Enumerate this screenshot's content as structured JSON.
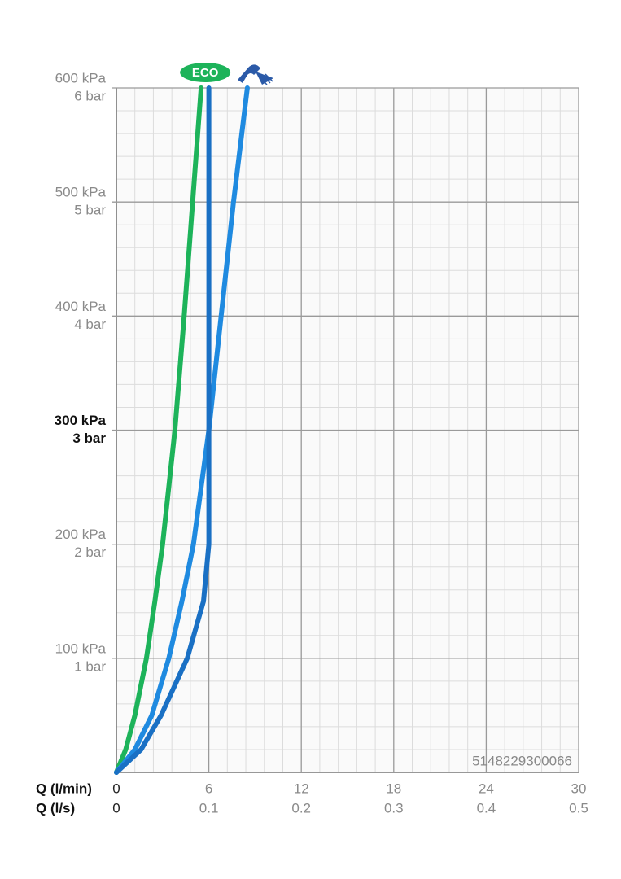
{
  "chart_data": {
    "type": "line",
    "xlabel": "Q (l/min)",
    "x2label": "Q (l/s)",
    "xlim": [
      0,
      30
    ],
    "xticks": [
      0,
      6,
      12,
      18,
      24,
      30
    ],
    "x2lim": [
      0,
      0.5
    ],
    "x2ticks": [
      0,
      0.1,
      0.2,
      0.3,
      0.4,
      0.5
    ],
    "ylim": [
      0,
      600
    ],
    "yticks": [
      {
        "value": 100,
        "label": "100 kPa"
      },
      {
        "value": 200,
        "label": "200 kPa"
      },
      {
        "value": 300,
        "label": "300 kPa"
      },
      {
        "value": 400,
        "label": "400 kPa"
      },
      {
        "value": 500,
        "label": "500 kPa"
      },
      {
        "value": 600,
        "label": "600 kPa"
      }
    ],
    "y2lim": [
      0,
      6
    ],
    "y2ticks": [
      {
        "value": 1,
        "label": "1 bar"
      },
      {
        "value": 2,
        "label": "2 bar"
      },
      {
        "value": 3,
        "label": "3 bar"
      },
      {
        "value": 4,
        "label": "4 bar"
      },
      {
        "value": 5,
        "label": "5 bar"
      },
      {
        "value": 6,
        "label": "6 bar"
      }
    ],
    "emphasized_ytick": 300,
    "grid": true,
    "minor_grid": true,
    "code": "5148229300066",
    "series": [
      {
        "name": "ECO",
        "color": "#1db35a",
        "x": [
          0,
          0.6,
          1.2,
          1.95,
          2.5,
          3.0,
          3.8,
          4.4,
          4.95,
          5.5
        ],
        "values": [
          0,
          20,
          50,
          100,
          150,
          200,
          300,
          400,
          500,
          600
        ]
      },
      {
        "color": "#1f8ae0",
        "x": [
          0,
          1.2,
          2.3,
          3.4,
          4.25,
          5.0,
          6.0,
          6.8,
          7.6,
          8.5
        ],
        "values": [
          0,
          20,
          50,
          100,
          150,
          200,
          300,
          400,
          500,
          600
        ]
      },
      {
        "color": "#1a70c4",
        "x": [
          0,
          1.6,
          2.9,
          4.6,
          5.65,
          6.0,
          6.0,
          6.0,
          6.0,
          6.0
        ],
        "values": [
          0,
          20,
          50,
          100,
          150,
          200,
          300,
          400,
          500,
          600
        ]
      }
    ]
  }
}
